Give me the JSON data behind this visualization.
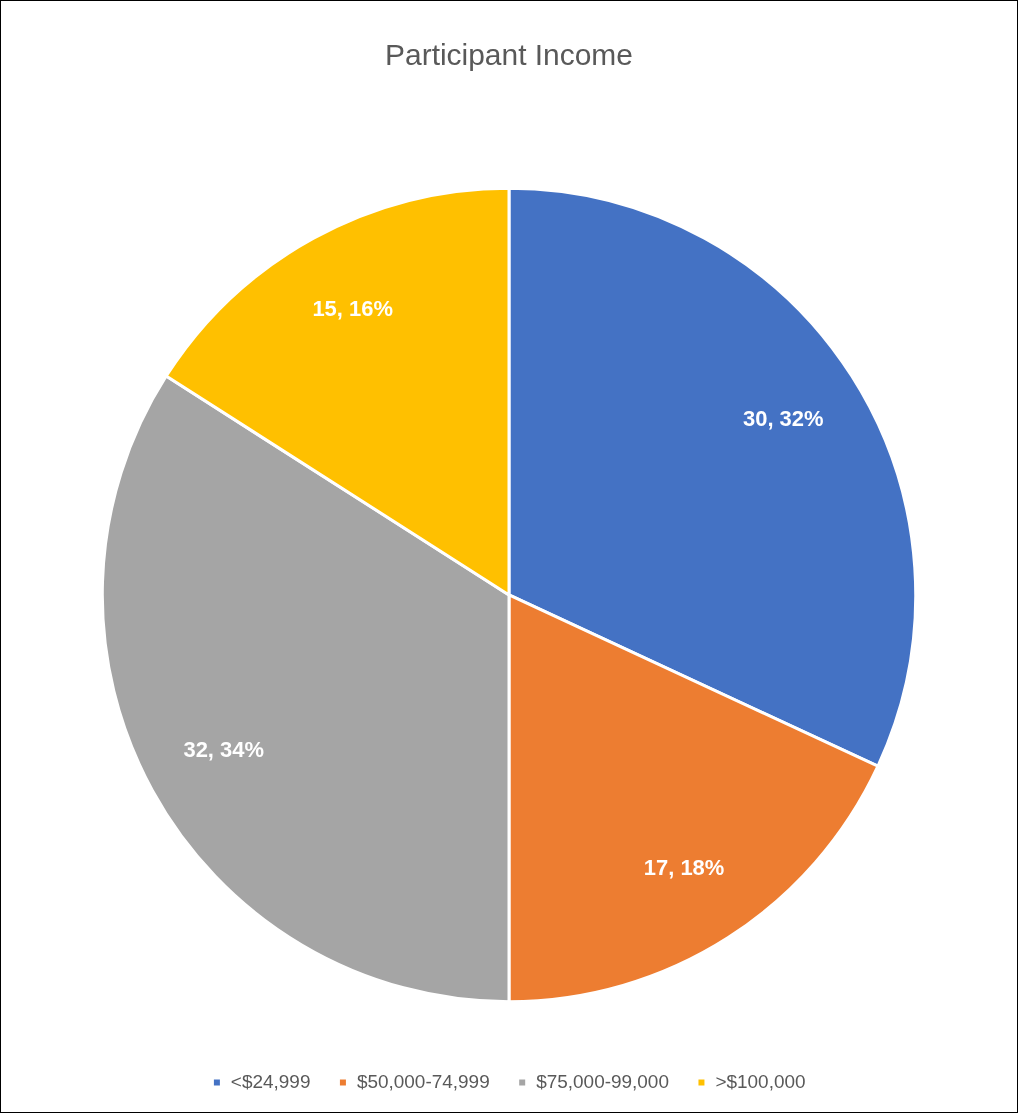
{
  "chart_data": {
    "type": "pie",
    "title": "Participant Income",
    "categories": [
      "<$24,999",
      "$50,000-74,999",
      "$75,000-99,000",
      ">$100,000"
    ],
    "values": [
      30,
      17,
      32,
      15
    ],
    "colors": [
      "#4472c4",
      "#ed7d31",
      "#a5a5a5",
      "#ffc000"
    ],
    "value_labels": [
      "30, 32%",
      "17, 18%",
      "32, 34%",
      "15, 16%"
    ],
    "legend": "bottom"
  }
}
